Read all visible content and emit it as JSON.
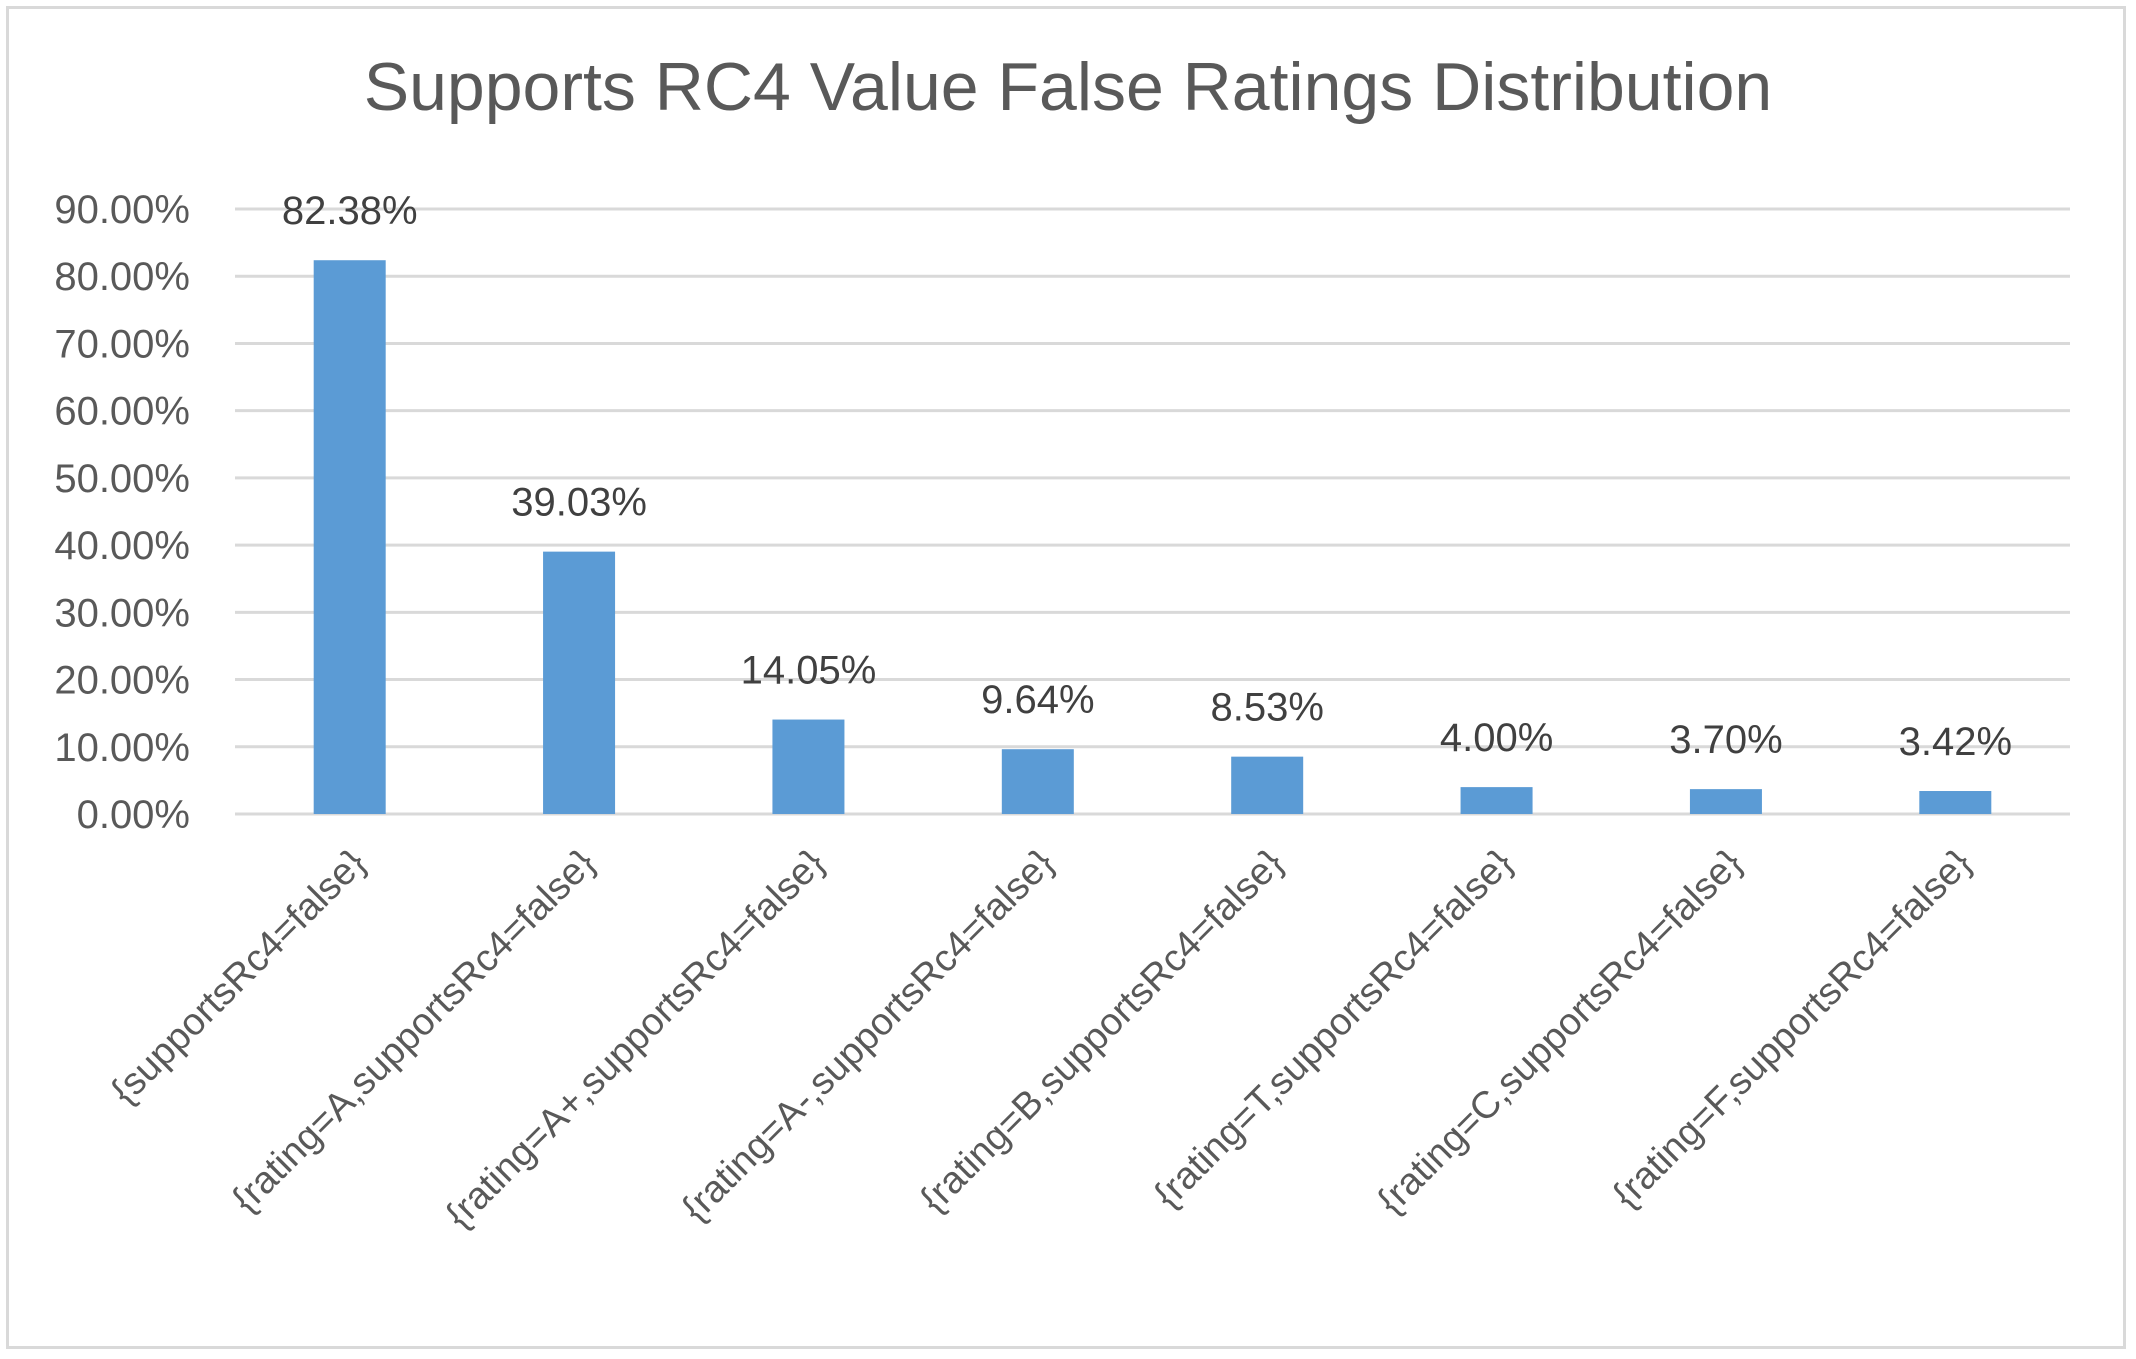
{
  "chart_data": {
    "type": "bar",
    "title": "Supports RC4 Value False Ratings Distribution",
    "xlabel": "",
    "ylabel": "",
    "categories": [
      "{supportsRc4=false}",
      "{rating=A,supportsRc4=false}",
      "{rating=A+,supportsRc4=false}",
      "{rating=A-,supportsRc4=false}",
      "{rating=B,supportsRc4=false}",
      "{rating=T,supportsRc4=false}",
      "{rating=C,supportsRc4=false}",
      "{rating=F,supportsRc4=false}"
    ],
    "values": [
      82.38,
      39.03,
      14.05,
      9.64,
      8.53,
      4.0,
      3.7,
      3.42
    ],
    "data_labels": [
      "82.38%",
      "39.03%",
      "14.05%",
      "9.64%",
      "8.53%",
      "4.00%",
      "3.70%",
      "3.42%"
    ],
    "ylim": [
      0,
      90
    ],
    "yticks": [
      0,
      10,
      20,
      30,
      40,
      50,
      60,
      70,
      80,
      90
    ],
    "ytick_labels": [
      "0.00%",
      "10.00%",
      "20.00%",
      "30.00%",
      "40.00%",
      "50.00%",
      "60.00%",
      "70.00%",
      "80.00%",
      "90.00%"
    ],
    "grid": true,
    "legend": "none",
    "bar_color": "#5b9bd5",
    "grid_color": "#d9d9d9",
    "text_color": "#595959",
    "label_color": "#404040"
  }
}
